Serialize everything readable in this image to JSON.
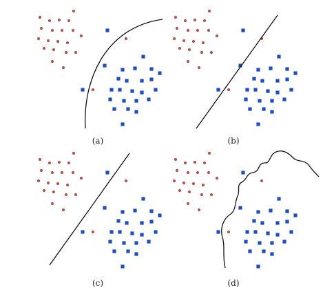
{
  "panels": [
    {
      "id": "a",
      "caption": "(a)",
      "boundary": "curve"
    },
    {
      "id": "b",
      "caption": "(b)",
      "boundary": "line"
    },
    {
      "id": "c",
      "caption": "(c)",
      "boundary": "line"
    },
    {
      "id": "d",
      "caption": "(d)",
      "boundary": "wiggly"
    }
  ],
  "colors": {
    "class_red": "#b5534a",
    "class_blue": "#1f4fbf",
    "boundary": "#111111"
  }
}
